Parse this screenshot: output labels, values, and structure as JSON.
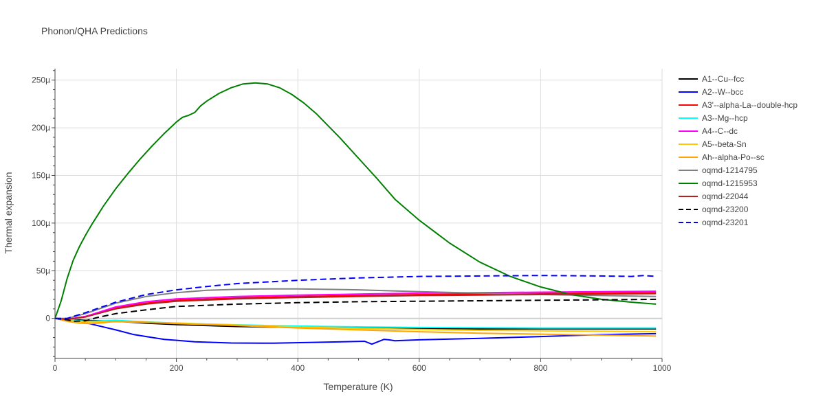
{
  "chart_data": {
    "type": "line",
    "title": "Phonon/QHA Predictions",
    "xlabel": "Temperature (K)",
    "ylabel": "Thermal expansion",
    "xlim": [
      0,
      1000
    ],
    "ylim": [
      -42,
      262
    ],
    "y_unit": "µ (×1e-6)",
    "x_ticks": [
      "0",
      "200",
      "400",
      "600",
      "800",
      "1000"
    ],
    "x_tick_values": [
      0,
      200,
      400,
      600,
      800,
      1000
    ],
    "y_ticks": [
      "0",
      "50µ",
      "100µ",
      "150µ",
      "200µ",
      "250µ"
    ],
    "y_tick_values": [
      0,
      50,
      100,
      150,
      200,
      250
    ],
    "grid": true,
    "legend_position": "right",
    "series": [
      {
        "name": "A1--Cu--fcc",
        "color": "#000000",
        "dash": "solid",
        "x": [
          0,
          20,
          50,
          100,
          150,
          200,
          300,
          400,
          500,
          600,
          700,
          800,
          900,
          990
        ],
        "y": [
          0,
          -1,
          -2,
          -3,
          -5,
          -6.5,
          -8.5,
          -9.5,
          -10,
          -10.5,
          -11,
          -11,
          -11,
          -11
        ]
      },
      {
        "name": "A2--W--bcc",
        "color": "#0000ff",
        "dash": "solid",
        "x": [
          0,
          20,
          40,
          60,
          80,
          100,
          130,
          160,
          180,
          230,
          290,
          360,
          440,
          510,
          522,
          532,
          542,
          550,
          560,
          600,
          700,
          800,
          900,
          990
        ],
        "y": [
          0,
          -1,
          -3,
          -6,
          -9,
          -12,
          -17,
          -20,
          -22,
          -24.5,
          -25.8,
          -26,
          -25,
          -24,
          -27,
          -24.5,
          -22,
          -22.5,
          -23.5,
          -22.5,
          -21,
          -19,
          -17,
          -16
        ]
      },
      {
        "name": "A3'--alpha-La--double-hcp",
        "color": "#ff0000",
        "dash": "solid",
        "x": [
          0,
          20,
          50,
          100,
          150,
          200,
          300,
          400,
          500,
          600,
          700,
          800,
          900,
          990
        ],
        "y": [
          0,
          -1,
          2,
          11,
          16,
          19,
          21.5,
          23,
          24,
          25,
          25.5,
          26,
          26.5,
          27
        ]
      },
      {
        "name": "A3--Mg--hcp",
        "color": "#00ffff",
        "dash": "solid",
        "x": [
          0,
          20,
          50,
          80,
          100,
          130,
          180,
          250,
          350,
          450,
          600,
          800,
          990
        ],
        "y": [
          0,
          -1,
          -3,
          -2.5,
          -2,
          -3,
          -4.5,
          -6,
          -7.5,
          -8.5,
          -9.5,
          -10,
          -10
        ]
      },
      {
        "name": "A4--C--dc",
        "color": "#ff00ff",
        "dash": "solid",
        "x": [
          0,
          20,
          50,
          100,
          150,
          200,
          300,
          400,
          500,
          600,
          700,
          800,
          900,
          990
        ],
        "y": [
          0,
          -1,
          2,
          12,
          17.5,
          20.5,
          23,
          24.5,
          25.5,
          26.5,
          27,
          27.5,
          28,
          28.5
        ]
      },
      {
        "name": "A5--beta-Sn",
        "color": "#ffc800",
        "dash": "solid",
        "x": [
          0,
          20,
          40,
          60,
          100,
          150,
          200,
          300,
          400,
          500,
          600,
          700,
          800,
          900,
          990
        ],
        "y": [
          0,
          -2,
          -3.5,
          -4,
          -3.5,
          -4,
          -5,
          -7,
          -9,
          -10.5,
          -11.5,
          -12.5,
          -13,
          -13.5,
          -14
        ]
      },
      {
        "name": "Ah--alpha-Po--sc",
        "color": "#ffa500",
        "dash": "solid",
        "x": [
          0,
          20,
          40,
          60,
          80,
          100,
          150,
          200,
          300,
          400,
          500,
          600,
          700,
          800,
          900,
          990
        ],
        "y": [
          0,
          -3,
          -5,
          -5.5,
          -4.5,
          -3,
          -4,
          -5.5,
          -7.5,
          -10,
          -12,
          -14,
          -15.5,
          -16.5,
          -17.5,
          -18.5
        ]
      },
      {
        "name": "oqmd-1214795",
        "color": "#808080",
        "dash": "solid",
        "x": [
          0,
          20,
          50,
          100,
          150,
          200,
          250,
          300,
          350,
          400,
          500,
          600,
          700,
          800,
          900,
          990
        ],
        "y": [
          0,
          0,
          5,
          16,
          23,
          27,
          29.5,
          30.5,
          31,
          31,
          30,
          28,
          26.5,
          25,
          24,
          23
        ]
      },
      {
        "name": "oqmd-1215953",
        "color": "#008000",
        "dash": "solid",
        "x": [
          0,
          10,
          20,
          30,
          40,
          50,
          60,
          70,
          80,
          100,
          120,
          140,
          160,
          180,
          200,
          210,
          220,
          230,
          240,
          250,
          270,
          290,
          310,
          330,
          350,
          370,
          390,
          410,
          430,
          450,
          470,
          500,
          530,
          560,
          600,
          650,
          700,
          750,
          800,
          850,
          900,
          950,
          990
        ],
        "y": [
          0,
          18,
          42,
          61,
          75,
          87,
          98,
          108,
          118,
          136,
          152,
          167,
          181,
          194,
          206,
          211,
          213,
          216,
          223,
          228,
          236,
          242,
          246,
          247,
          246,
          242,
          235,
          226,
          215,
          202,
          189,
          168,
          147,
          125,
          103,
          79,
          59,
          44,
          33,
          25,
          20,
          17,
          15
        ]
      },
      {
        "name": "oqmd-22044",
        "color": "#b22222",
        "dash": "solid",
        "x": [
          0,
          20,
          50,
          100,
          150,
          200,
          300,
          400,
          500,
          600,
          700,
          800,
          900,
          990
        ],
        "y": [
          0,
          -1,
          1.5,
          10,
          15,
          18,
          20.5,
          22,
          23,
          24,
          24.5,
          25,
          25.5,
          26
        ]
      },
      {
        "name": "oqmd-23200",
        "color": "#000000",
        "dash": "dash",
        "x": [
          0,
          20,
          30,
          50,
          70,
          100,
          150,
          200,
          300,
          400,
          500,
          600,
          700,
          800,
          900,
          990
        ],
        "y": [
          0,
          -1.5,
          -3,
          -2.5,
          1,
          5,
          9,
          12.5,
          15,
          16.5,
          17.5,
          18,
          18.5,
          19,
          19.5,
          20
        ]
      },
      {
        "name": "oqmd-23201",
        "color": "#0000ff",
        "dash": "dash",
        "x": [
          0,
          20,
          50,
          100,
          150,
          200,
          250,
          300,
          400,
          500,
          600,
          700,
          800,
          900,
          950,
          970,
          990
        ],
        "y": [
          0,
          0,
          6,
          17,
          25,
          30,
          33.5,
          36.5,
          40,
          42.5,
          44,
          44.5,
          45,
          44.5,
          44,
          45,
          44
        ]
      }
    ]
  }
}
